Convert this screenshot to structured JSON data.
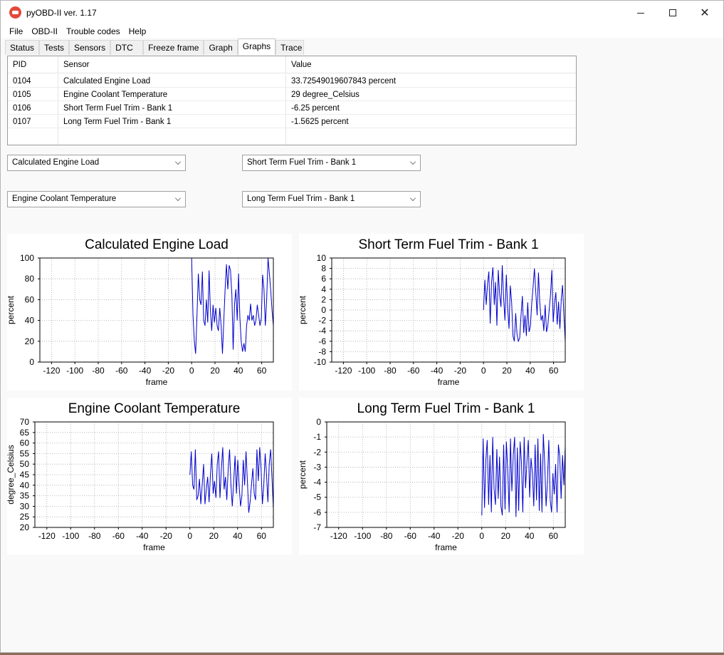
{
  "window": {
    "title": "pyOBD-II ver. 1.17",
    "controls": {
      "minimize": "minimize",
      "maximize": "maximize",
      "close": "✕"
    }
  },
  "menu": [
    "File",
    "OBD-II",
    "Trouble codes",
    "Help"
  ],
  "tabs": [
    {
      "label": "Status"
    },
    {
      "label": "Tests"
    },
    {
      "label": "Sensors"
    },
    {
      "label": "DTC"
    },
    {
      "label": "Freeze frame"
    },
    {
      "label": "Graph"
    },
    {
      "label": "Graphs",
      "active": true
    },
    {
      "label": "Trace"
    }
  ],
  "table": {
    "headers": [
      "PID",
      "Sensor",
      "Value"
    ],
    "rows": [
      [
        "0104",
        "Calculated Engine Load",
        "33.72549019607843 percent"
      ],
      [
        "0105",
        "Engine Coolant Temperature",
        "29 degree_Celsius"
      ],
      [
        "0106",
        "Short Term Fuel Trim - Bank 1",
        "-6.25 percent"
      ],
      [
        "0107",
        "Long Term Fuel Trim - Bank 1",
        "-1.5625 percent"
      ]
    ]
  },
  "selectors": [
    "Calculated Engine Load",
    "Short Term Fuel Trim - Bank 1",
    "Engine Coolant Temperature",
    "Long Term Fuel Trim - Bank 1"
  ],
  "chart_data": [
    {
      "type": "line",
      "title": "Calculated Engine Load",
      "xlabel": "frame",
      "ylabel": "percent",
      "xlim": [
        -130,
        70
      ],
      "ylim": [
        0,
        100
      ],
      "xticks": [
        -120,
        -100,
        -80,
        -60,
        -40,
        -20,
        0,
        20,
        40,
        60
      ],
      "yticks": [
        0,
        20,
        40,
        60,
        80,
        100
      ],
      "grid": true,
      "color": "#0000cc",
      "x_start": 0,
      "values": [
        100,
        45,
        20,
        8,
        45,
        85,
        60,
        55,
        87,
        40,
        35,
        60,
        38,
        88,
        50,
        30,
        55,
        38,
        52,
        35,
        30,
        52,
        35,
        8,
        40,
        70,
        94,
        70,
        93,
        88,
        65,
        12,
        55,
        70,
        40,
        85,
        42,
        20,
        10,
        18,
        10,
        35,
        45,
        40,
        56,
        40,
        45,
        35,
        40,
        55,
        45,
        35,
        42,
        84,
        70,
        35,
        60,
        100,
        85,
        70,
        50,
        35
      ]
    },
    {
      "type": "line",
      "title": "Short Term Fuel Trim - Bank 1",
      "xlabel": "frame",
      "ylabel": "percent",
      "xlim": [
        -130,
        70
      ],
      "ylim": [
        -10,
        10
      ],
      "xticks": [
        -120,
        -100,
        -80,
        -60,
        -40,
        -20,
        0,
        20,
        40,
        60
      ],
      "yticks": [
        -10,
        -8,
        -6,
        -4,
        -2,
        0,
        2,
        4,
        6,
        8,
        10
      ],
      "grid": true,
      "color": "#0000cc",
      "x_start": 0,
      "values": [
        0,
        5.8,
        1,
        5,
        7.4,
        -2.6,
        5.4,
        8.2,
        1,
        5.4,
        -3,
        7.7,
        3,
        0.6,
        8.6,
        2.5,
        -2,
        6.8,
        0.5,
        -3.6,
        4.7,
        1.5,
        -5,
        -6,
        -0.6,
        -4.6,
        -6,
        -5.4,
        -1,
        2.7,
        -4.4,
        -1,
        -5,
        1.5,
        -4.2,
        -3,
        1.4,
        4.4,
        8,
        3.5,
        -1,
        7.2,
        1.5,
        -2,
        -1,
        -4,
        1,
        -4.2,
        -3,
        0,
        2.9,
        7.7,
        -2.3,
        1.2,
        3.4,
        -2.8,
        1.6,
        -3.6,
        2,
        4.8,
        -1,
        -6
      ]
    },
    {
      "type": "line",
      "title": "Engine Coolant Temperature",
      "xlabel": "frame",
      "ylabel": "degree_Celsius",
      "xlim": [
        -130,
        70
      ],
      "ylim": [
        20,
        70
      ],
      "xticks": [
        -120,
        -100,
        -80,
        -60,
        -40,
        -20,
        0,
        20,
        40,
        60
      ],
      "yticks": [
        20,
        25,
        30,
        35,
        40,
        45,
        50,
        55,
        60,
        65,
        70
      ],
      "grid": true,
      "color": "#0000cc",
      "x_start": 0,
      "values": [
        45,
        56,
        40,
        38,
        57,
        33,
        35,
        43,
        31,
        40,
        50,
        31,
        38,
        44,
        32,
        45,
        55,
        36,
        42,
        34,
        50,
        56,
        34,
        48,
        58,
        38,
        44,
        33,
        48,
        57,
        40,
        30,
        42,
        54,
        36,
        52,
        40,
        30,
        35,
        52,
        40,
        56,
        42,
        27,
        32,
        40,
        48,
        36,
        33,
        57,
        42,
        58,
        48,
        31,
        40,
        55,
        45,
        32,
        50,
        57,
        43,
        29
      ]
    },
    {
      "type": "line",
      "title": "Long Term Fuel Trim - Bank 1",
      "xlabel": "frame",
      "ylabel": "percent",
      "xlim": [
        -130,
        70
      ],
      "ylim": [
        -7,
        0
      ],
      "xticks": [
        -120,
        -100,
        -80,
        -60,
        -40,
        -20,
        0,
        20,
        40,
        60
      ],
      "yticks": [
        -7,
        -6,
        -5,
        -4,
        -3,
        -2,
        -1,
        0
      ],
      "grid": true,
      "color": "#0000cc",
      "x_start": 0,
      "values": [
        -6.2,
        -1.1,
        -5.7,
        -2.5,
        -1.2,
        -5.5,
        -2.2,
        -6.0,
        -1.0,
        -4.4,
        -5.5,
        -1.8,
        -5.1,
        -2.3,
        -5.6,
        -6.2,
        -1.5,
        -5.8,
        -1.3,
        -3.3,
        -6.0,
        -1.1,
        -4.6,
        -2.2,
        -1.0,
        -6.3,
        -1.7,
        -5.9,
        -1.3,
        -2.7,
        -6.0,
        -1.0,
        -4.4,
        -2.6,
        -1.2,
        -5.0,
        -2.4,
        -3.4,
        -5.6,
        -1.5,
        -5.2,
        -1.1,
        -5.9,
        -2.1,
        -6.0,
        -0.8,
        -2.8,
        -5.6,
        -4.0,
        -1.2,
        -5.2,
        -6.0,
        -3.4,
        -4.8,
        -2.8,
        -6.0,
        -1.5,
        -2.3,
        -5.1,
        -2.2,
        -4.2,
        -1.6
      ]
    }
  ]
}
